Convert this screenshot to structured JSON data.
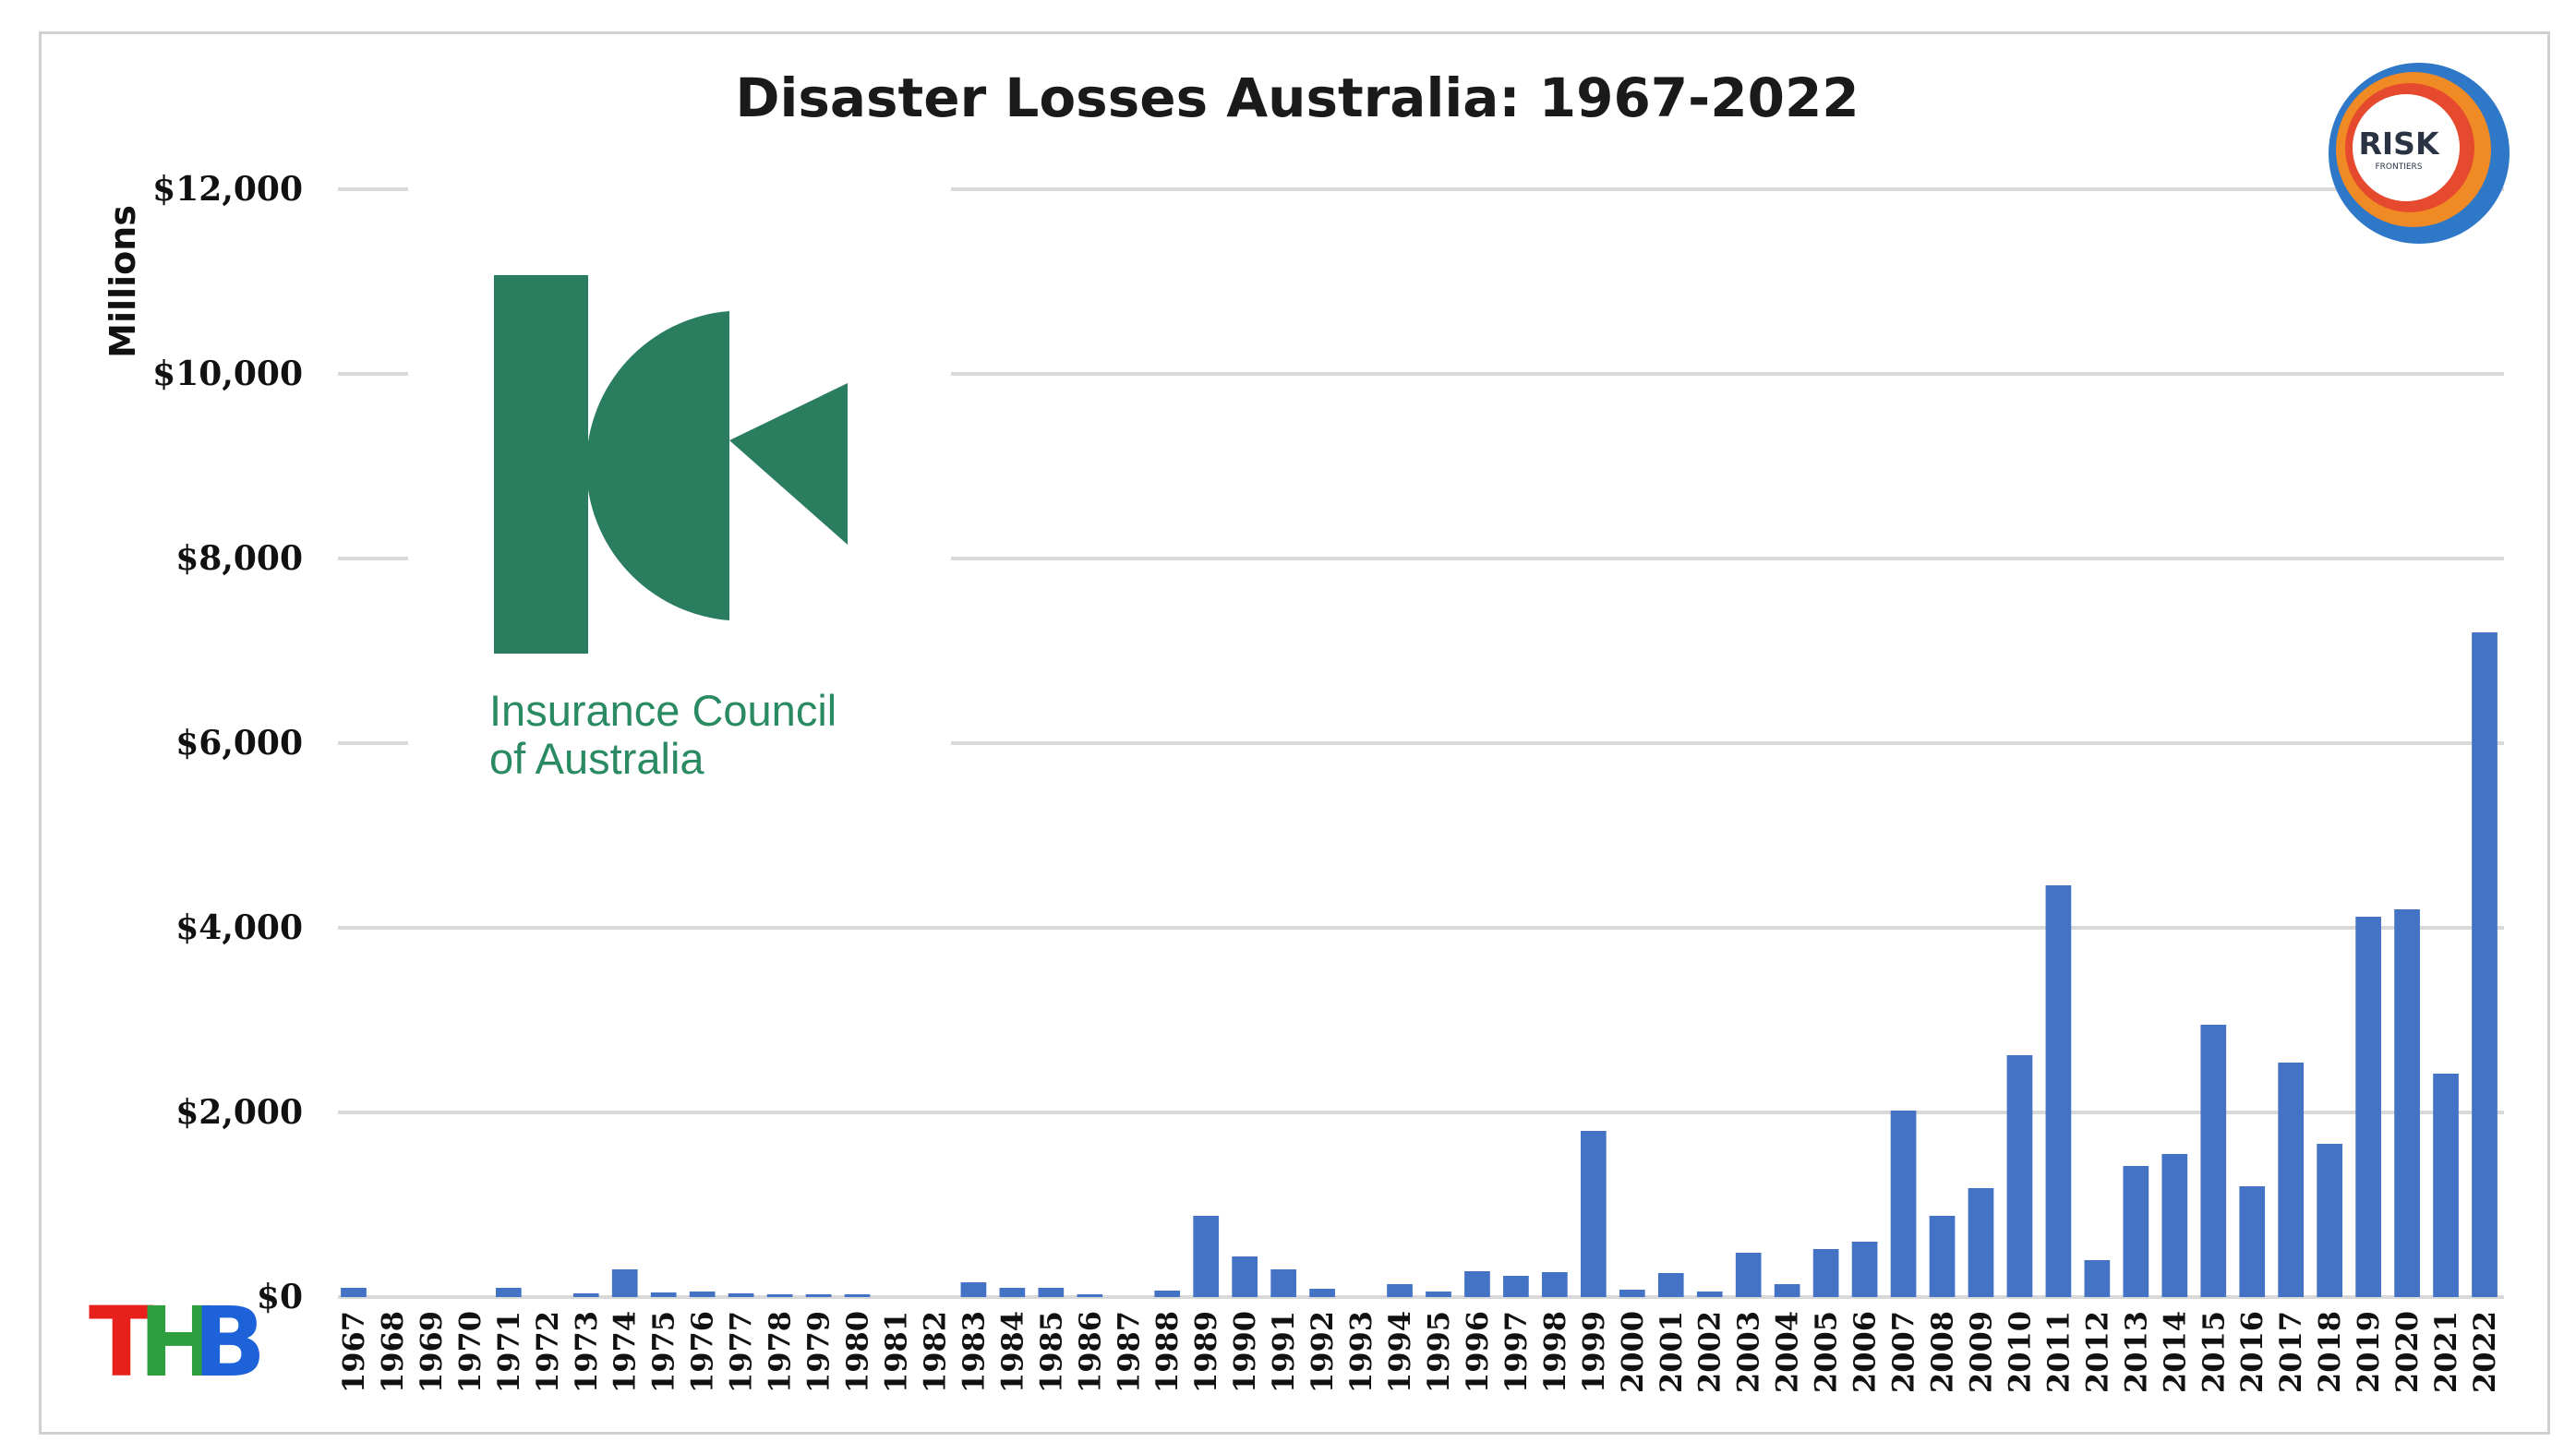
{
  "chart_data": {
    "type": "bar",
    "title": "Disaster Losses Australia: 1967-2022",
    "ylabel": "Millions",
    "xlabel": "",
    "ylim": [
      0,
      12000
    ],
    "yticks": [
      0,
      2000,
      4000,
      6000,
      8000,
      10000,
      12000
    ],
    "ytick_labels": [
      "$0",
      "$2,000",
      "$4,000",
      "$6,000",
      "$8,000",
      "$10,000",
      "$12,000"
    ],
    "grid": true,
    "bar_color": "#4472c4",
    "categories": [
      "1967",
      "1968",
      "1969",
      "1970",
      "1971",
      "1972",
      "1973",
      "1974",
      "1975",
      "1976",
      "1977",
      "1978",
      "1979",
      "1980",
      "1981",
      "1982",
      "1983",
      "1984",
      "1985",
      "1986",
      "1987",
      "1988",
      "1989",
      "1990",
      "1991",
      "1992",
      "1993",
      "1994",
      "1995",
      "1996",
      "1997",
      "1998",
      "1999",
      "2000",
      "2001",
      "2002",
      "2003",
      "2004",
      "2005",
      "2006",
      "2007",
      "2008",
      "2009",
      "2010",
      "2011",
      "2012",
      "2013",
      "2014",
      "2015",
      "2016",
      "2017",
      "2018",
      "2019",
      "2020",
      "2021",
      "2022"
    ],
    "values": [
      100,
      0,
      0,
      0,
      100,
      0,
      40,
      300,
      50,
      60,
      40,
      30,
      30,
      30,
      0,
      0,
      160,
      100,
      100,
      30,
      0,
      70,
      880,
      440,
      300,
      90,
      0,
      140,
      60,
      280,
      230,
      270,
      1800,
      80,
      260,
      60,
      480,
      140,
      520,
      600,
      2020,
      880,
      1180,
      2620,
      4460,
      400,
      1420,
      1550,
      2950,
      1200,
      2540,
      1660,
      4120,
      4200,
      2420,
      7200
    ]
  },
  "logos": {
    "ica": {
      "line1": "Insurance Council",
      "line2": "of Australia",
      "color": "#2a8a62"
    },
    "risk_frontiers": {
      "line1": "RISK",
      "line2": "FRONTIERS"
    },
    "thb": {
      "letters": [
        "T",
        "H",
        "B"
      ],
      "colors": [
        "#e8201c",
        "#2f9e3f",
        "#1d62d8"
      ]
    }
  }
}
